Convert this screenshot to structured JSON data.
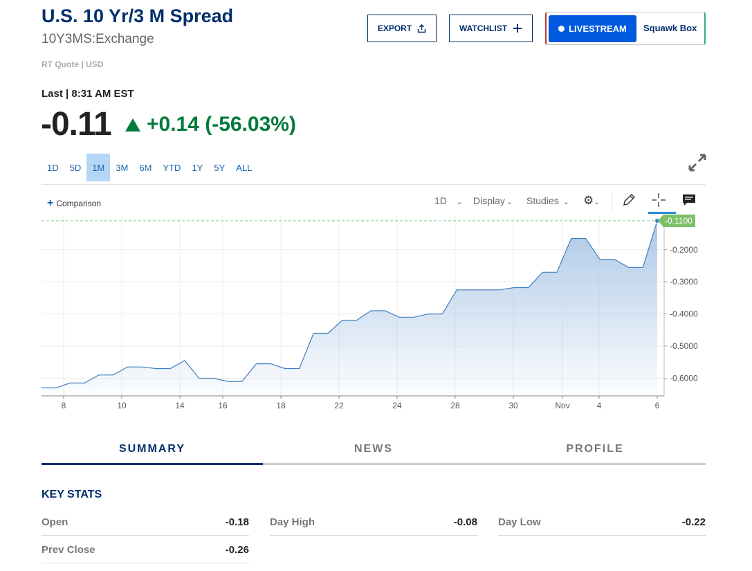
{
  "header": {
    "title": "U.S. 10 Yr/3 M Spread",
    "symbol": "10Y3MS:Exchange",
    "rt_quote": "RT Quote | USD",
    "export_label": "EXPORT",
    "watchlist_label": "WATCHLIST",
    "livestream_label": "LIVESTREAM",
    "squawk_label": "Squawk Box"
  },
  "quote": {
    "last_label": "Last | 8:31 AM EST",
    "price": "-0.11",
    "change": "+0.14 (-56.03%)",
    "change_color": "#007a3d"
  },
  "ranges": [
    "1D",
    "5D",
    "1M",
    "3M",
    "6M",
    "YTD",
    "1Y",
    "5Y",
    "ALL"
  ],
  "active_range": "1M",
  "toolbar": {
    "comparison_label": "Comparison",
    "interval_label": "1D",
    "display_label": "Display",
    "studies_label": "Studies"
  },
  "chart_data": {
    "type": "area",
    "x_tick_labels": [
      "8",
      "10",
      "14",
      "16",
      "18",
      "22",
      "24",
      "28",
      "30",
      "Nov",
      "4",
      "6"
    ],
    "y_tick_labels": [
      "-0.2000",
      "-0.3000",
      "-0.4000",
      "-0.5000",
      "-0.6000"
    ],
    "ylim": [
      -0.655,
      -0.095
    ],
    "y_ticks": [
      -0.2,
      -0.3,
      -0.4,
      -0.5,
      -0.6
    ],
    "current_value": -0.11,
    "current_label": "-0.1100",
    "series": [
      {
        "values": [
          -0.63,
          -0.63,
          -0.615,
          -0.615,
          -0.59,
          -0.59,
          -0.565,
          -0.565,
          -0.57,
          -0.57,
          -0.545,
          -0.6,
          -0.6,
          -0.61,
          -0.61,
          -0.555,
          -0.555,
          -0.57,
          -0.57,
          -0.46,
          -0.46,
          -0.42,
          -0.42,
          -0.39,
          -0.39,
          -0.41,
          -0.41,
          -0.4,
          -0.4,
          -0.325,
          -0.325,
          -0.325,
          -0.325,
          -0.318,
          -0.318,
          -0.27,
          -0.27,
          -0.165,
          -0.165,
          -0.23,
          -0.23,
          -0.255,
          -0.255,
          -0.11
        ]
      }
    ],
    "grid": true,
    "line_color": "#3f7fbf",
    "fill_color": "#a9c6e6"
  },
  "tabs": [
    "SUMMARY",
    "NEWS",
    "PROFILE"
  ],
  "key_stats": {
    "title": "KEY STATS",
    "items": [
      {
        "label": "Open",
        "value": "-0.18"
      },
      {
        "label": "Day High",
        "value": "-0.08"
      },
      {
        "label": "Day Low",
        "value": "-0.22"
      },
      {
        "label": "Prev Close",
        "value": "-0.26"
      }
    ]
  }
}
